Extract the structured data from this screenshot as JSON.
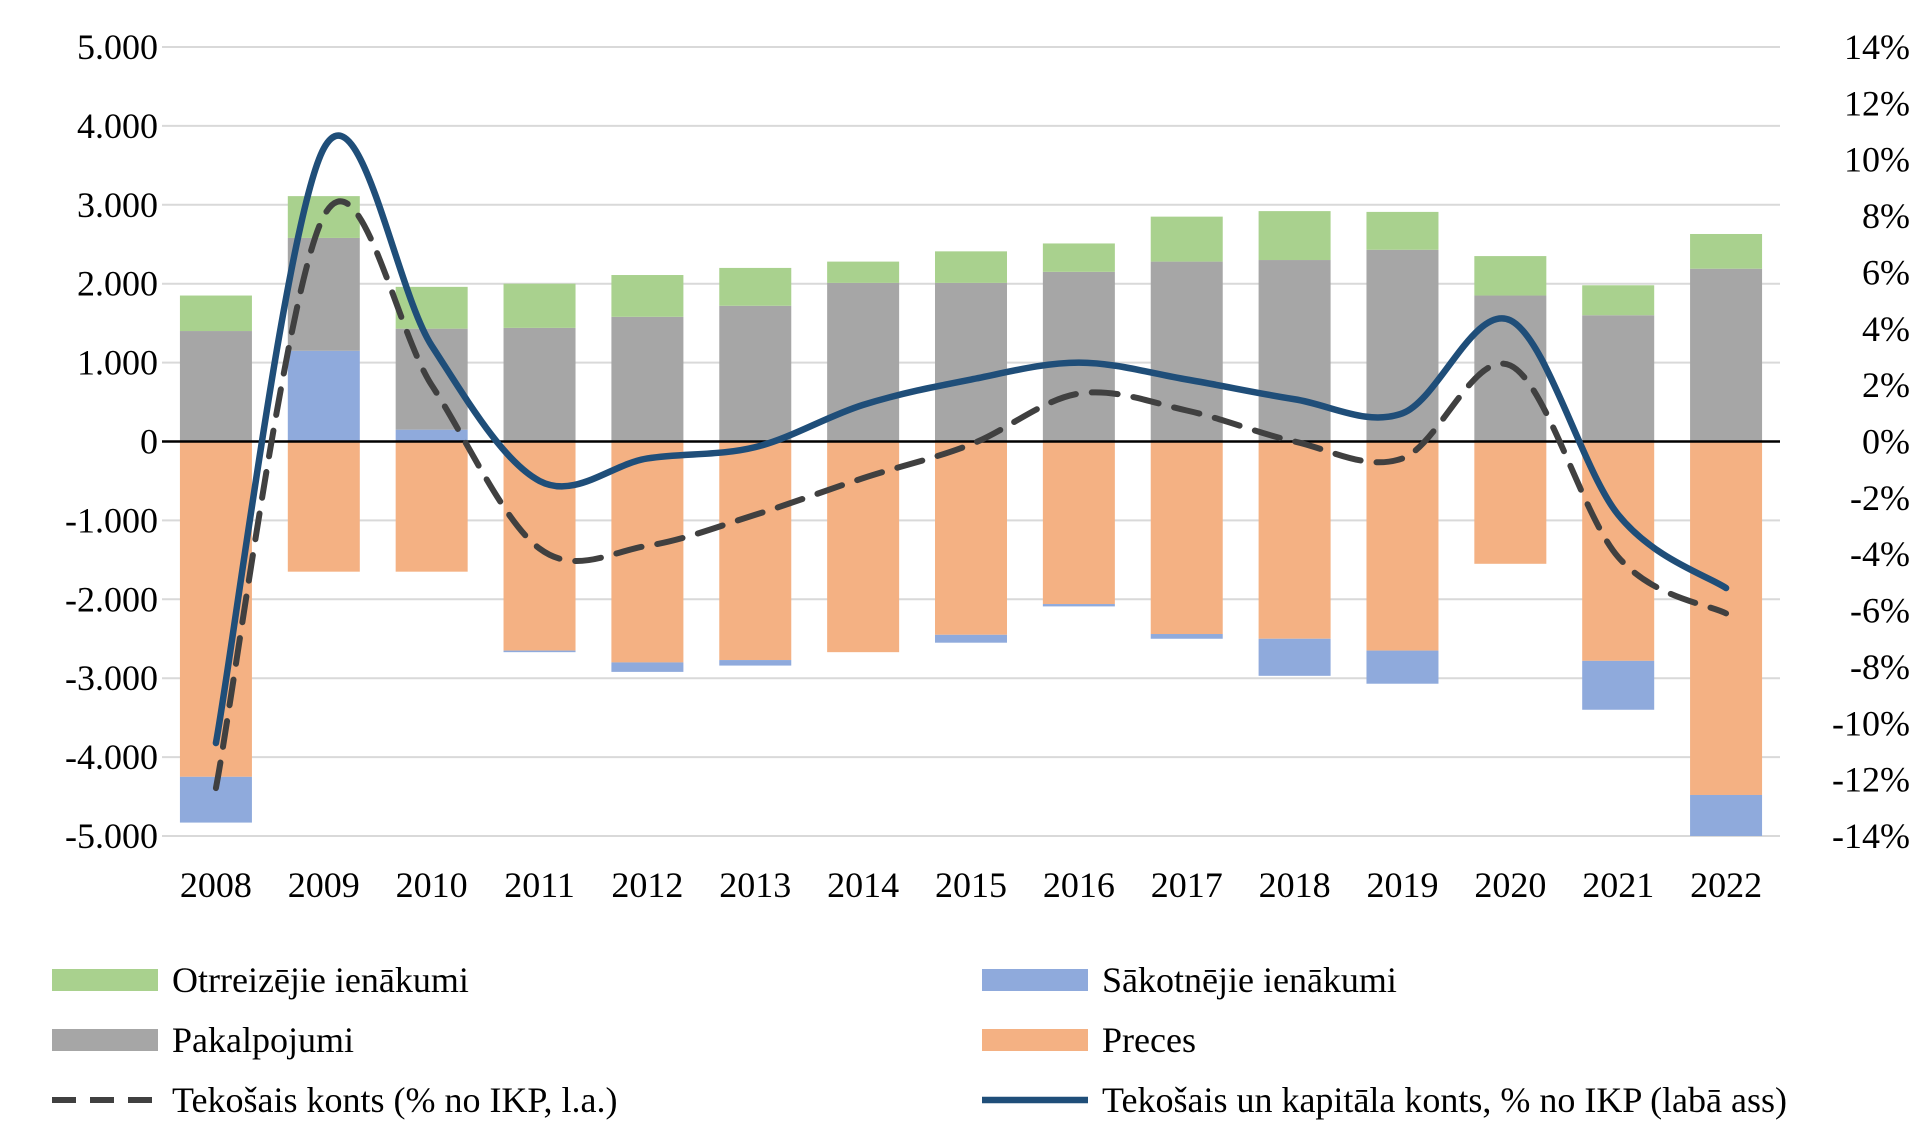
{
  "chart_data": {
    "type": "bar",
    "categories": [
      "2008",
      "2009",
      "2010",
      "2011",
      "2012",
      "2013",
      "2014",
      "2015",
      "2016",
      "2017",
      "2018",
      "2019",
      "2020",
      "2021",
      "2022"
    ],
    "ylim": [
      -5000,
      5000
    ],
    "y2lim": [
      -14,
      14
    ],
    "yticks": [
      "5.000",
      "4.000",
      "3.000",
      "2.000",
      "1.000",
      "0",
      "-1.000",
      "-2.000",
      "-3.000",
      "-4.000",
      "-5.000"
    ],
    "y2ticks": [
      "14%",
      "12%",
      "10%",
      "8%",
      "6%",
      "4%",
      "2%",
      "0%",
      "-2%",
      "-4%",
      "-6%",
      "-8%",
      "-10%",
      "-12%",
      "-14%"
    ],
    "grid": true,
    "legend_position": "bottom",
    "series": [
      {
        "name": "Preces",
        "kind": "bar",
        "axis": "left",
        "color": "#f4b183",
        "values": [
          -4250,
          -1650,
          -1650,
          -2650,
          -2800,
          -2770,
          -2670,
          -2450,
          -2060,
          -2440,
          -2500,
          -2650,
          -1550,
          -2780,
          -4480
        ]
      },
      {
        "name": "Sākotnējie ienākumi",
        "kind": "bar",
        "axis": "left",
        "color": "#8faadc",
        "values": [
          -580,
          1150,
          150,
          -20,
          -120,
          -70,
          10,
          -100,
          -30,
          -60,
          -470,
          -420,
          10,
          -620,
          -520
        ]
      },
      {
        "name": "Pakalpojumi",
        "kind": "bar",
        "axis": "left",
        "color": "#a6a6a6",
        "values": [
          1400,
          1430,
          1280,
          1440,
          1580,
          1720,
          2000,
          2010,
          2150,
          2280,
          2300,
          2430,
          1840,
          1600,
          2190
        ]
      },
      {
        "name": "Otrreizējie ienākumi",
        "kind": "bar",
        "axis": "left",
        "color": "#a9d18e",
        "values": [
          450,
          530,
          530,
          560,
          530,
          480,
          270,
          400,
          360,
          570,
          620,
          480,
          500,
          380,
          440
        ]
      },
      {
        "name": "Tekošais konts (% no IKP, l.a.)",
        "kind": "line",
        "dash": true,
        "axis": "right",
        "color": "#404040",
        "values": [
          -12.3,
          8.0,
          2.0,
          -3.8,
          -3.7,
          -2.6,
          -1.3,
          -0.1,
          1.7,
          1.1,
          0.0,
          -0.6,
          2.7,
          -4.1,
          -6.1
        ]
      },
      {
        "name": "Tekošais un kapitāla konts, % no IKP (labā ass)",
        "kind": "line",
        "dash": false,
        "axis": "right",
        "color": "#1f4e79",
        "values": [
          -10.7,
          10.4,
          3.4,
          -1.4,
          -0.6,
          -0.2,
          1.3,
          2.2,
          2.8,
          2.2,
          1.5,
          1.0,
          4.3,
          -2.6,
          -5.2
        ]
      }
    ]
  },
  "legend": {
    "items": [
      {
        "label": "Otrreizējie ienākumi",
        "swatch": "rect",
        "color": "#a9d18e"
      },
      {
        "label": "Sākotnējie ienākumi",
        "swatch": "rect",
        "color": "#8faadc"
      },
      {
        "label": "Pakalpojumi",
        "swatch": "rect",
        "color": "#a6a6a6"
      },
      {
        "label": "Preces",
        "swatch": "rect",
        "color": "#f4b183"
      },
      {
        "label": "Tekošais konts (% no IKP, l.a.)",
        "swatch": "dash",
        "color": "#404040"
      },
      {
        "label": "Tekošais un kapitāla konts, % no IKP (labā ass)",
        "swatch": "line",
        "color": "#1f4e79"
      }
    ]
  }
}
